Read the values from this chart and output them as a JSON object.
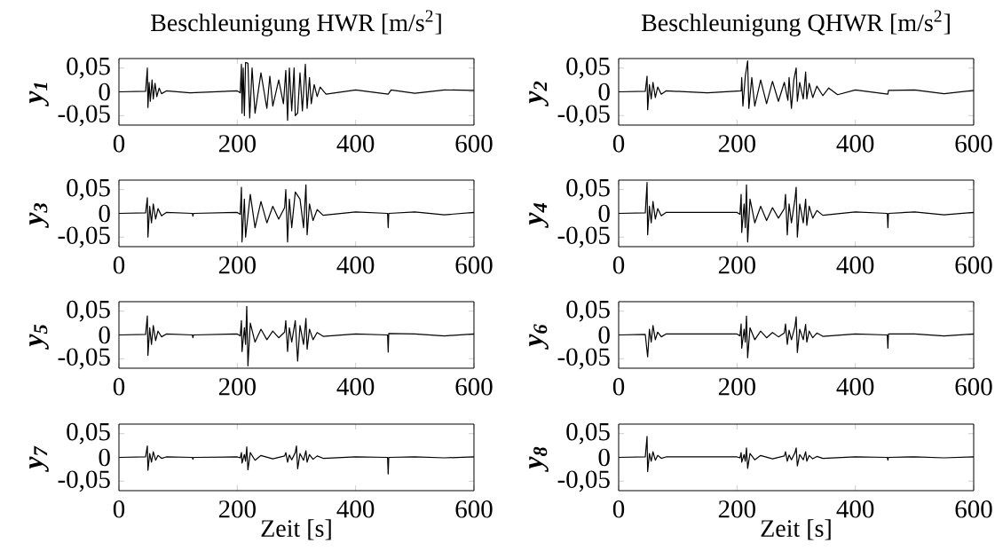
{
  "chart_data": [
    {
      "type": "line",
      "title": "Beschleunigung HWR [m/s$^{2}$]",
      "ylabel": "y$_{1}$",
      "color": "#000000",
      "xlim": [
        0,
        600
      ],
      "ylim": [
        -0.07,
        0.07
      ],
      "xticks": [
        0,
        200,
        400,
        600
      ],
      "yticks": [
        {
          "value": -0.05,
          "label": "-0,05"
        },
        {
          "value": 0,
          "label": "0"
        },
        {
          "value": 0.05,
          "label": "0,05"
        }
      ],
      "x": [
        0,
        45,
        48,
        49,
        51,
        53,
        56,
        58,
        61,
        64,
        68,
        72,
        80,
        120,
        200,
        205,
        207,
        208,
        210,
        212,
        214,
        216,
        218,
        221,
        225,
        230,
        240,
        250,
        255,
        260,
        270,
        278,
        282,
        285,
        288,
        292,
        296,
        298,
        300,
        302,
        306,
        310,
        315,
        318,
        322,
        325,
        330,
        335,
        340,
        350,
        400,
        455,
        460,
        500,
        550,
        600
      ],
      "values": [
        0,
        0.001,
        0.05,
        -0.033,
        0.02,
        -0.02,
        0.025,
        -0.015,
        0.018,
        -0.01,
        0.008,
        -0.004,
        0.002,
        -0.002,
        0.002,
        -0.002,
        0.058,
        -0.045,
        0.05,
        -0.05,
        0.062,
        null,
        0.06,
        -0.055,
        0.05,
        -0.045,
        0.04,
        -0.035,
        0.033,
        -0.03,
        0.025,
        -0.025,
        0.045,
        -0.06,
        0.05,
        -0.04,
        0.05,
        -0.05,
        null,
        -0.045,
        0.04,
        -0.04,
        0.058,
        -0.035,
        0.03,
        -0.025,
        0.015,
        -0.01,
        0.01,
        -0.005,
        0.004,
        -0.005,
        0.004,
        -0.003,
        0.004,
        0.003
      ]
    },
    {
      "type": "line",
      "title": "Beschleunigung QHWR [m/s$^{2}$]",
      "ylabel": "y$_{2}$",
      "color": "#000000",
      "xlim": [
        0,
        600
      ],
      "ylim": [
        -0.07,
        0.07
      ],
      "xticks": [
        0,
        200,
        400,
        600
      ],
      "yticks": [
        {
          "value": -0.05,
          "label": "-0,05"
        },
        {
          "value": 0,
          "label": "0"
        },
        {
          "value": 0.05,
          "label": "0,05"
        }
      ],
      "x": [
        0,
        45,
        48,
        49,
        52,
        55,
        58,
        62,
        66,
        72,
        80,
        150,
        207,
        208,
        210,
        214,
        218,
        220,
        225,
        230,
        240,
        250,
        260,
        270,
        280,
        286,
        288,
        292,
        296,
        300,
        302,
        306,
        312,
        316,
        318,
        322,
        328,
        335,
        345,
        355,
        370,
        400,
        455,
        456,
        500,
        550,
        600
      ],
      "values": [
        0,
        0.001,
        0.033,
        -0.038,
        0.015,
        -0.015,
        0.02,
        -0.012,
        0.01,
        -0.005,
        0.002,
        -0.002,
        0.002,
        0.03,
        -0.03,
        0.032,
        0.065,
        -0.035,
        0.03,
        -0.03,
        0.025,
        -0.025,
        0.022,
        -0.02,
        0.02,
        -0.018,
        0.03,
        -0.035,
        0.025,
        0.05,
        -0.02,
        0.02,
        -0.015,
        0.042,
        -0.015,
        0.018,
        -0.012,
        0.012,
        -0.008,
        0.008,
        -0.006,
        0.004,
        -0.005,
        0.003,
        0.004,
        -0.004,
        0.003
      ]
    },
    {
      "type": "line",
      "ylabel": "y$_{3}$",
      "color": "#000000",
      "xlim": [
        0,
        600
      ],
      "ylim": [
        -0.07,
        0.07
      ],
      "xticks": [
        0,
        200,
        400,
        600
      ],
      "yticks": [
        {
          "value": -0.05,
          "label": "-0,05"
        },
        {
          "value": 0,
          "label": "0"
        },
        {
          "value": 0.05,
          "label": "0,05"
        }
      ],
      "x": [
        0,
        45,
        48,
        49,
        52,
        55,
        58,
        62,
        66,
        72,
        80,
        124,
        125,
        126,
        200,
        205,
        207,
        208,
        212,
        214,
        216,
        218,
        222,
        230,
        240,
        250,
        260,
        270,
        280,
        282,
        285,
        288,
        292,
        298,
        300,
        302,
        306,
        312,
        316,
        318,
        322,
        328,
        335,
        345,
        400,
        454,
        455,
        456,
        500,
        550,
        600
      ],
      "values": [
        0,
        0.001,
        0.033,
        -0.05,
        0.015,
        -0.02,
        0.02,
        -0.012,
        0.01,
        -0.005,
        0.002,
        0,
        -0.006,
        0,
        0.002,
        -0.002,
        0.055,
        -0.06,
        0.03,
        -0.05,
        null,
        null,
        0.04,
        -0.03,
        0.025,
        -0.02,
        0.015,
        -0.012,
        0.012,
        0.05,
        -0.06,
        0.03,
        -0.03,
        0.045,
        null,
        null,
        0.03,
        -0.03,
        0.06,
        -0.045,
        0.02,
        -0.015,
        0.008,
        -0.004,
        0.003,
        0,
        -0.03,
        0,
        0.003,
        -0.003,
        0.002
      ]
    },
    {
      "type": "line",
      "ylabel": "y$_{4}$",
      "color": "#000000",
      "xlim": [
        0,
        600
      ],
      "ylim": [
        -0.07,
        0.07
      ],
      "xticks": [
        0,
        200,
        400,
        600
      ],
      "yticks": [
        {
          "value": -0.05,
          "label": "-0,05"
        },
        {
          "value": 0,
          "label": "0"
        },
        {
          "value": 0.05,
          "label": "0,05"
        }
      ],
      "x": [
        0,
        45,
        48,
        49,
        52,
        55,
        58,
        62,
        66,
        72,
        80,
        200,
        205,
        207,
        208,
        212,
        214,
        216,
        218,
        222,
        230,
        240,
        250,
        260,
        270,
        280,
        282,
        285,
        288,
        292,
        298,
        300,
        302,
        306,
        312,
        316,
        318,
        322,
        328,
        335,
        345,
        400,
        454,
        455,
        456,
        500,
        550,
        600
      ],
      "values": [
        0,
        0.001,
        0.065,
        -0.045,
        0.015,
        -0.02,
        0.025,
        -0.012,
        0.01,
        -0.005,
        0.002,
        0.002,
        -0.002,
        0.04,
        -0.04,
        0.02,
        -0.03,
        0.06,
        -0.06,
        0.03,
        -0.02,
        0.015,
        -0.015,
        0.012,
        -0.01,
        0.01,
        0.04,
        -0.045,
        0.02,
        -0.02,
        0.03,
        0.055,
        -0.05,
        0.02,
        -0.02,
        0.03,
        -0.025,
        0.015,
        -0.01,
        0.006,
        -0.004,
        0.003,
        0,
        -0.03,
        0,
        0.003,
        -0.003,
        0.002
      ]
    },
    {
      "type": "line",
      "ylabel": "y$_{5}$",
      "color": "#000000",
      "xlim": [
        0,
        600
      ],
      "ylim": [
        -0.07,
        0.07
      ],
      "xticks": [
        0,
        200,
        400,
        600
      ],
      "yticks": [
        {
          "value": -0.05,
          "label": "-0,05"
        },
        {
          "value": 0,
          "label": "0"
        },
        {
          "value": 0.05,
          "label": "0,05"
        }
      ],
      "x": [
        0,
        45,
        48,
        49,
        52,
        55,
        58,
        62,
        66,
        72,
        80,
        124,
        125,
        126,
        200,
        205,
        207,
        208,
        212,
        214,
        216,
        218,
        222,
        230,
        240,
        250,
        260,
        270,
        280,
        282,
        285,
        288,
        292,
        298,
        300,
        302,
        306,
        312,
        316,
        318,
        322,
        328,
        335,
        345,
        400,
        454,
        455,
        456,
        500,
        550,
        600
      ],
      "values": [
        0,
        0.001,
        0.04,
        -0.043,
        0.015,
        -0.02,
        0.02,
        -0.012,
        0.008,
        -0.004,
        0.002,
        0,
        -0.006,
        0,
        0.002,
        -0.002,
        0.03,
        -0.035,
        0.015,
        -0.02,
        0.06,
        -0.065,
        0.025,
        -0.015,
        0.012,
        -0.01,
        0.008,
        -0.006,
        0.006,
        0.03,
        -0.035,
        0.015,
        -0.015,
        0.03,
        null,
        -0.055,
        0.02,
        -0.02,
        0.035,
        -0.03,
        0.012,
        -0.01,
        0.005,
        -0.003,
        0.002,
        0,
        -0.036,
        0.003,
        0.002,
        -0.002,
        0.002
      ]
    },
    {
      "type": "line",
      "ylabel": "y$_{6}$",
      "color": "#000000",
      "xlim": [
        0,
        600
      ],
      "ylim": [
        -0.07,
        0.07
      ],
      "xticks": [
        0,
        200,
        400,
        600
      ],
      "yticks": [
        {
          "value": -0.05,
          "label": "-0,05"
        },
        {
          "value": 0,
          "label": "0"
        },
        {
          "value": 0.05,
          "label": "0,05"
        }
      ],
      "x": [
        0,
        45,
        48,
        49,
        52,
        55,
        58,
        62,
        66,
        72,
        80,
        200,
        205,
        207,
        208,
        212,
        214,
        216,
        218,
        222,
        230,
        240,
        250,
        260,
        270,
        280,
        282,
        285,
        288,
        292,
        298,
        300,
        302,
        306,
        312,
        316,
        318,
        322,
        328,
        335,
        345,
        400,
        454,
        455,
        456,
        500,
        550,
        600
      ],
      "values": [
        0,
        0.001,
        null,
        -0.046,
        0.012,
        -0.015,
        0.02,
        -0.01,
        0.006,
        -0.004,
        0.002,
        0.002,
        -0.002,
        0.023,
        -0.028,
        0.012,
        -0.015,
        0.04,
        -0.048,
        0.015,
        -0.01,
        0.008,
        -0.006,
        0.005,
        -0.004,
        0.004,
        0.023,
        -0.02,
        0.01,
        -0.01,
        0.018,
        0.038,
        -0.037,
        0.012,
        -0.01,
        0.022,
        -0.015,
        0.008,
        -0.006,
        0.004,
        -0.003,
        0.002,
        0,
        -0.028,
        0.002,
        0.002,
        -0.002,
        0.002
      ]
    },
    {
      "type": "line",
      "xlabel": "Zeit [s]",
      "ylabel": "y$_{7}$",
      "color": "#000000",
      "xlim": [
        0,
        600
      ],
      "ylim": [
        -0.07,
        0.07
      ],
      "xticks": [
        0,
        200,
        400,
        600
      ],
      "yticks": [
        {
          "value": -0.05,
          "label": "-0,05"
        },
        {
          "value": 0,
          "label": "0"
        },
        {
          "value": 0.05,
          "label": "0,05"
        }
      ],
      "x": [
        0,
        45,
        48,
        49,
        52,
        55,
        58,
        62,
        66,
        72,
        80,
        124,
        125,
        126,
        200,
        205,
        207,
        208,
        212,
        214,
        216,
        218,
        222,
        230,
        240,
        260,
        280,
        282,
        285,
        288,
        292,
        298,
        300,
        302,
        306,
        312,
        316,
        318,
        322,
        328,
        335,
        345,
        400,
        454,
        455,
        456,
        500,
        550,
        600
      ],
      "values": [
        0,
        0.001,
        0.024,
        -0.027,
        0.008,
        -0.01,
        0.012,
        -0.006,
        0.004,
        -0.002,
        0.001,
        0,
        -0.004,
        0,
        0.001,
        -0.001,
        0.01,
        -0.012,
        0.006,
        -0.008,
        0.022,
        -0.026,
        0.01,
        -0.006,
        0.004,
        -0.003,
        0.003,
        0.01,
        -0.01,
        0.005,
        -0.005,
        0.01,
        0.024,
        -0.024,
        0.008,
        -0.006,
        0.014,
        -0.01,
        0.006,
        -0.004,
        0.003,
        -0.002,
        0.001,
        0,
        -0.035,
        0,
        0.001,
        -0.001,
        0.001
      ]
    },
    {
      "type": "line",
      "xlabel": "Zeit [s]",
      "ylabel": "y$_{8}$",
      "color": "#000000",
      "xlim": [
        0,
        600
      ],
      "ylim": [
        -0.07,
        0.07
      ],
      "xticks": [
        0,
        200,
        400,
        600
      ],
      "yticks": [
        {
          "value": -0.05,
          "label": "-0,05"
        },
        {
          "value": 0,
          "label": "0"
        },
        {
          "value": 0.05,
          "label": "0,05"
        }
      ],
      "x": [
        0,
        45,
        48,
        49,
        52,
        55,
        58,
        62,
        66,
        72,
        80,
        200,
        205,
        207,
        208,
        212,
        214,
        216,
        218,
        222,
        230,
        240,
        260,
        280,
        282,
        285,
        288,
        292,
        298,
        300,
        302,
        306,
        312,
        316,
        318,
        322,
        328,
        335,
        345,
        400,
        454,
        455,
        456,
        500,
        550,
        600
      ],
      "values": [
        0,
        0.001,
        0.044,
        -0.03,
        0.008,
        -0.008,
        0.012,
        -0.006,
        0.004,
        -0.002,
        0.001,
        0.001,
        -0.001,
        0.01,
        -0.01,
        0.006,
        -0.008,
        0.02,
        -0.023,
        0.008,
        -0.005,
        0.004,
        -0.003,
        0.003,
        0.012,
        -0.008,
        0.005,
        -0.005,
        0.01,
        0.02,
        -0.018,
        0.006,
        -0.005,
        0.012,
        -0.008,
        0.004,
        -0.003,
        0.002,
        -0.002,
        0.001,
        0,
        -0.006,
        0,
        0.001,
        -0.001,
        0.001
      ]
    }
  ]
}
